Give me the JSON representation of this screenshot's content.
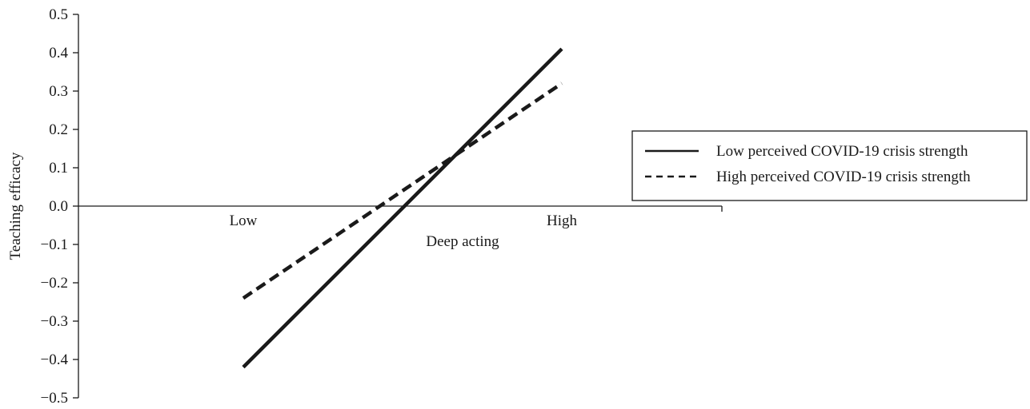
{
  "chart_data": {
    "type": "line",
    "categories": [
      "Low",
      "High"
    ],
    "xlabel": "Deep acting",
    "ylabel": "Teaching efficacy",
    "ylim": [
      -0.5,
      0.5
    ],
    "yticks": [
      "0.5",
      "0.4",
      "0.3",
      "0.2",
      "0.1",
      "0.0",
      "−0.1",
      "−0.2",
      "−0.3",
      "−0.4",
      "−0.5"
    ],
    "grid": false,
    "legend_position": "right",
    "series": [
      {
        "name": "Low perceived COVID-19 crisis strength",
        "style": "solid",
        "values": [
          -0.42,
          0.41
        ]
      },
      {
        "name": "High perceived COVID-19 crisis strength",
        "style": "dashed",
        "values": [
          -0.24,
          0.32
        ]
      }
    ]
  },
  "colors": {
    "line": "#1a1a1a",
    "background": "#ffffff"
  }
}
